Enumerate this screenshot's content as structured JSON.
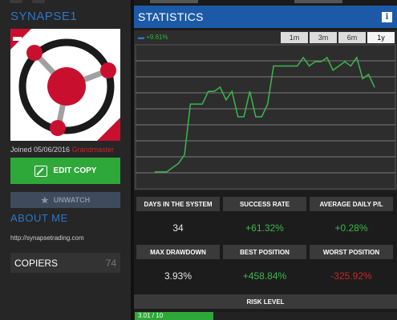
{
  "profile": {
    "username": "SYNAPSE1",
    "joined_label": "Joined 05/06/2016",
    "rank": "Grandmaster",
    "edit_label": "EDIT COPY",
    "unwatch_label": "UNWATCH",
    "about_title": "ABOUT ME",
    "website": "http://synapsetrading.com",
    "copiers_label": "COPIERS",
    "copiers_count": "74"
  },
  "stats": {
    "title": "STATISTICS",
    "info_icon": "i",
    "legend_value": "+9.61%",
    "ranges": [
      "1m",
      "3m",
      "6m",
      "1y"
    ],
    "active_range": "1y"
  },
  "chart_data": {
    "type": "line",
    "series": [
      {
        "values": [
          0,
          0,
          0,
          1,
          2,
          4,
          16,
          16,
          16,
          19,
          19,
          20,
          17,
          19,
          13,
          13,
          19,
          13,
          13,
          16,
          25,
          25,
          25,
          25,
          25,
          27,
          25,
          26,
          26,
          27,
          24,
          25,
          26,
          25,
          27,
          22,
          23,
          20
        ]
      }
    ],
    "color": "#3ab84a",
    "grid": true
  },
  "metrics": [
    {
      "label": "DAYS IN THE SYSTEM",
      "value": "34",
      "tone": "neutral"
    },
    {
      "label": "SUCCESS RATE",
      "value": "+61.32%",
      "tone": "green"
    },
    {
      "label": "AVERAGE DAILY P/L",
      "value": "+0.28%",
      "tone": "green"
    },
    {
      "label": "MAX DRAWDOWN",
      "value": "3.93%",
      "tone": "neutral"
    },
    {
      "label": "BEST POSITION",
      "value": "+458.84%",
      "tone": "green"
    },
    {
      "label": "WORST POSITION",
      "value": "-325.92%",
      "tone": "red"
    }
  ],
  "risk": {
    "label": "RISK LEVEL",
    "value_text": "3.01 / 10",
    "level": 3.01,
    "max": 10
  }
}
